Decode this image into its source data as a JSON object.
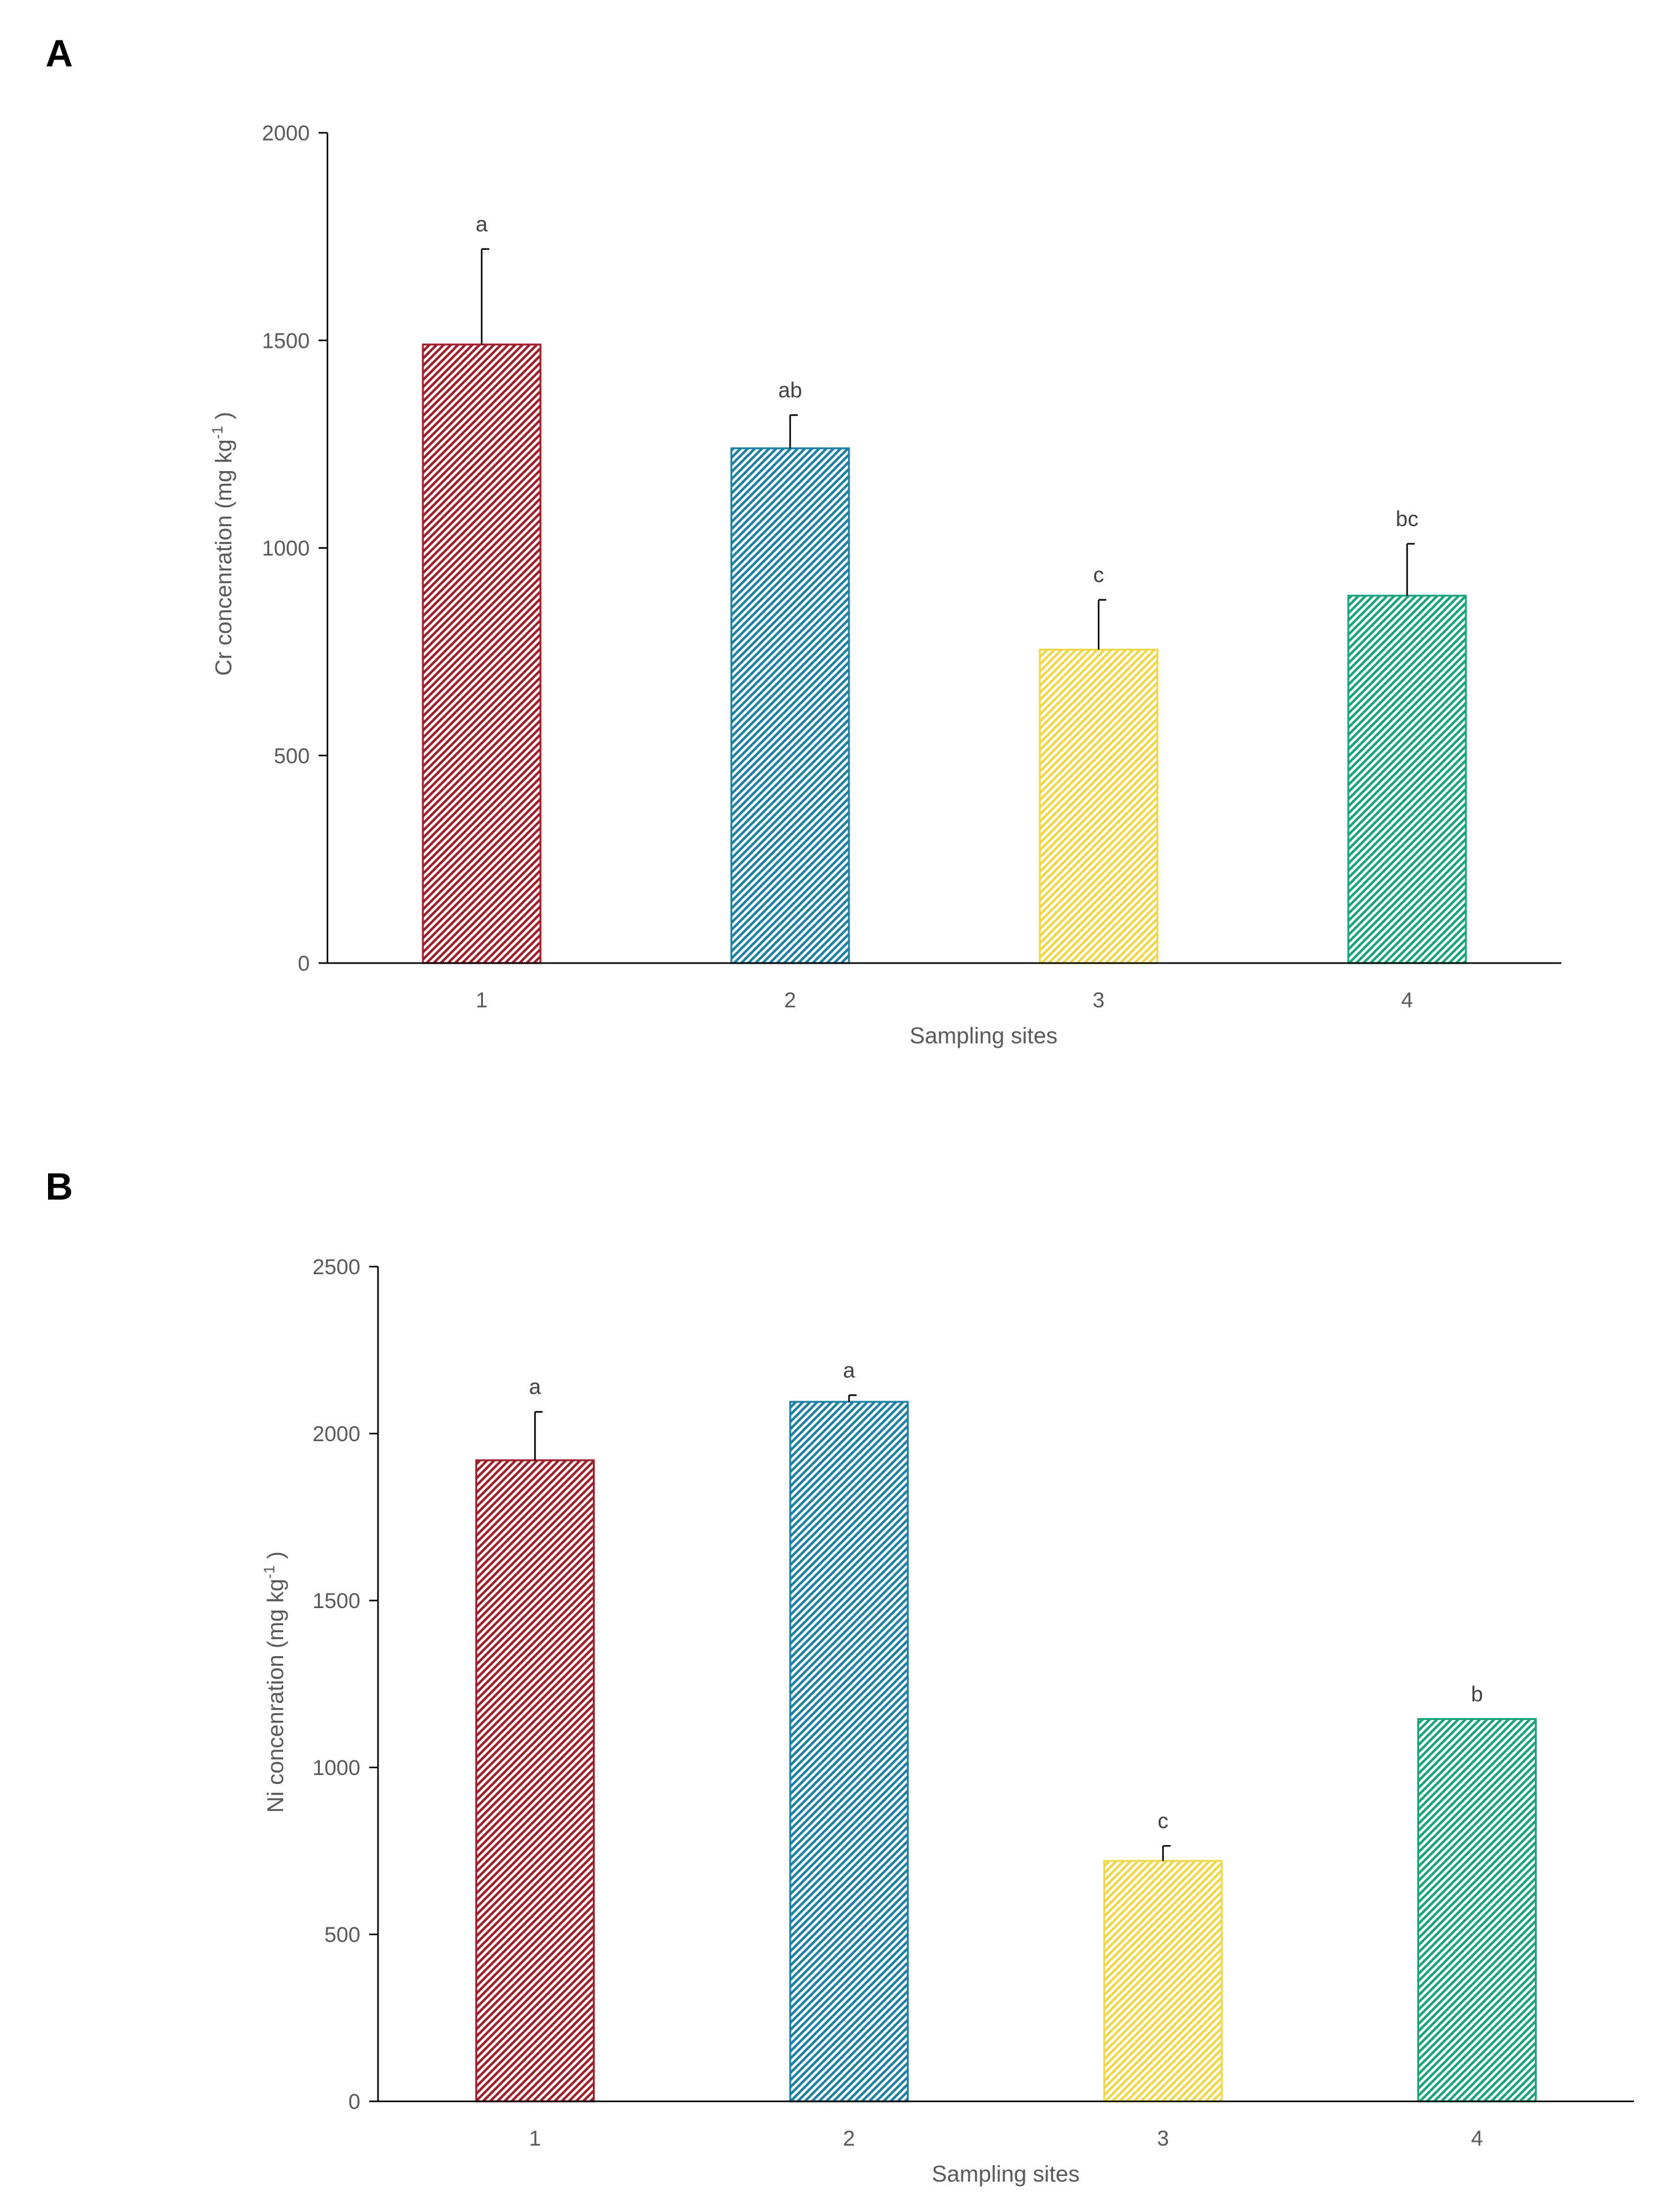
{
  "chart_data": [
    {
      "panel": "A",
      "type": "bar",
      "categories": [
        "1",
        "2",
        "3",
        "4"
      ],
      "values": [
        1490,
        1240,
        755,
        885
      ],
      "error_upper": [
        1720,
        1320,
        875,
        1010
      ],
      "significance": [
        "a",
        "ab",
        "c",
        "bc"
      ],
      "colors": [
        "#9e1f2a",
        "#1d7fa2",
        "#f2d64a",
        "#1aa37a"
      ],
      "xlabel": "Sampling sites",
      "ylabel": {
        "main": "Cr concenration (mg kg",
        "sup": "-1",
        "end": " )"
      },
      "ylim": [
        0,
        2000
      ],
      "yticks": [
        0,
        500,
        1000,
        1500,
        2000
      ],
      "grid": false
    },
    {
      "panel": "B",
      "type": "bar",
      "categories": [
        "1",
        "2",
        "3",
        "4"
      ],
      "values": [
        1920,
        2095,
        720,
        1145
      ],
      "error_upper": [
        2065,
        2115,
        765,
        1145
      ],
      "significance": [
        "a",
        "a",
        "c",
        "b"
      ],
      "colors": [
        "#9e1f2a",
        "#1d7fa2",
        "#f2d64a",
        "#1aa37a"
      ],
      "xlabel": "Sampling sites",
      "ylabel": {
        "main": "Ni concenration (mg kg",
        "sup": "-1",
        "end": " )"
      },
      "ylim": [
        0,
        2500
      ],
      "yticks": [
        0,
        500,
        1000,
        1500,
        2000,
        2500
      ],
      "grid": false
    }
  ]
}
